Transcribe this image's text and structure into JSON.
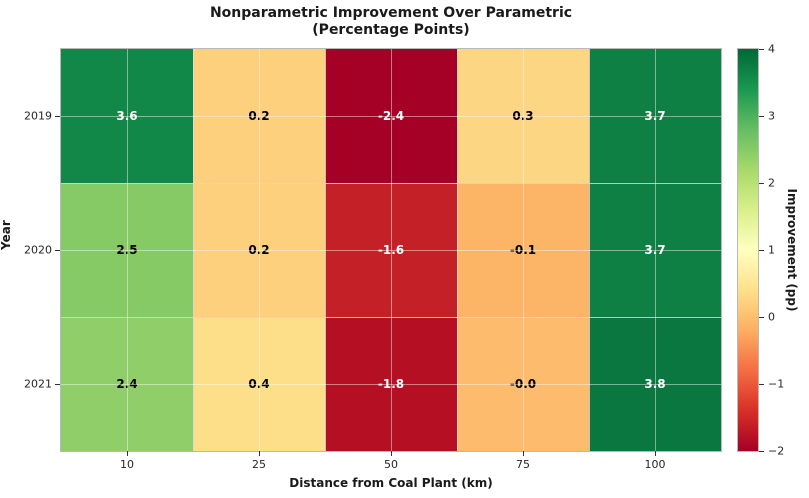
{
  "title": {
    "line1": "Nonparametric Improvement Over Parametric",
    "line2": "(Percentage Points)"
  },
  "chart_data": {
    "type": "heatmap",
    "title": "Nonparametric Improvement Over Parametric (Percentage Points)",
    "xlabel": "Distance from Coal Plant (km)",
    "ylabel": "Year",
    "x_categories": [
      "10",
      "25",
      "50",
      "75",
      "100"
    ],
    "y_categories": [
      "2019",
      "2020",
      "2021"
    ],
    "values": [
      [
        3.6,
        0.2,
        -2.4,
        0.3,
        3.7
      ],
      [
        2.5,
        0.2,
        -1.6,
        -0.1,
        3.7
      ],
      [
        2.4,
        0.4,
        -1.8,
        -0.0,
        3.8
      ]
    ],
    "cell_labels": [
      [
        "3.6",
        "0.2",
        "-2.4",
        "0.3",
        "3.7"
      ],
      [
        "2.5",
        "0.2",
        "-1.6",
        "-0.1",
        "3.7"
      ],
      [
        "2.4",
        "0.4",
        "-1.8",
        "-0.0",
        "3.8"
      ]
    ],
    "cell_colors": [
      [
        "#118847",
        "#fcd07d",
        "#a50026",
        "#fdd683",
        "#0e8044"
      ],
      [
        "#86ca66",
        "#fcd07d",
        "#c32127",
        "#fcb566",
        "#0e8044"
      ],
      [
        "#8fce69",
        "#fddf8a",
        "#b50f23",
        "#fcbb6d",
        "#0a7740"
      ]
    ],
    "cell_text_colors": [
      [
        "#ffffff",
        "#000000",
        "#ffffff",
        "#000000",
        "#ffffff"
      ],
      [
        "#000000",
        "#000000",
        "#ffffff",
        "#000000",
        "#ffffff"
      ],
      [
        "#000000",
        "#000000",
        "#ffffff",
        "#000000",
        "#ffffff"
      ]
    ],
    "grid": true,
    "colorbar": {
      "label": "Improvement (pp)",
      "tick_labels": [
        "4",
        "3",
        "2",
        "1",
        "0",
        "−1",
        "−2"
      ],
      "vmin": -2,
      "vmax": 4,
      "colormap": "RdYlGn",
      "gradient_top_to_bottom": [
        "#006837",
        "#1a9850",
        "#66bd63",
        "#a6d96a",
        "#d9ef8b",
        "#ffffbf",
        "#fee08b",
        "#fdae61",
        "#f46d43",
        "#d73027",
        "#a50026"
      ]
    }
  }
}
